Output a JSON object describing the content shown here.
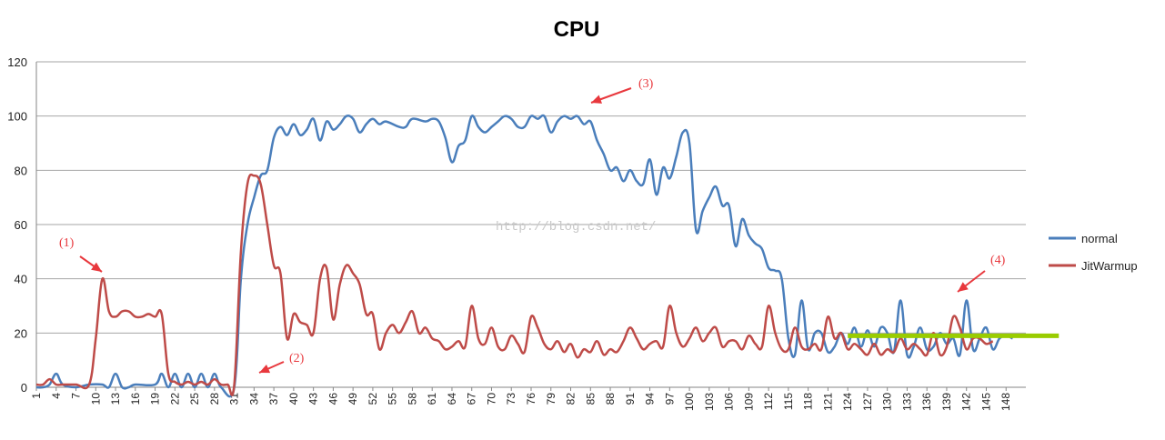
{
  "chart_data": {
    "type": "line",
    "title": "CPU",
    "xlabel": "",
    "ylabel": "",
    "ylim": [
      0,
      120
    ],
    "yticks": [
      0,
      20,
      40,
      60,
      80,
      100,
      120
    ],
    "xlim": [
      1,
      151
    ],
    "xticks": [
      1,
      4,
      7,
      10,
      13,
      16,
      19,
      22,
      25,
      28,
      31,
      34,
      37,
      40,
      43,
      46,
      49,
      52,
      55,
      58,
      61,
      64,
      67,
      70,
      73,
      76,
      79,
      82,
      85,
      88,
      91,
      94,
      97,
      100,
      103,
      106,
      109,
      112,
      115,
      118,
      121,
      124,
      127,
      130,
      133,
      136,
      139,
      142,
      145,
      148
    ],
    "grid": true,
    "legend_position": "right",
    "series": [
      {
        "name": "normal",
        "color": "#4a7ebb",
        "points": [
          [
            1,
            0
          ],
          [
            2,
            0
          ],
          [
            3,
            1
          ],
          [
            4,
            5
          ],
          [
            5,
            1
          ],
          [
            7,
            0
          ],
          [
            9,
            1
          ],
          [
            11,
            1
          ],
          [
            12,
            0
          ],
          [
            13,
            5
          ],
          [
            14,
            0
          ],
          [
            15,
            0
          ],
          [
            16,
            1
          ],
          [
            19,
            1
          ],
          [
            20,
            5
          ],
          [
            21,
            0
          ],
          [
            22,
            5
          ],
          [
            23,
            0
          ],
          [
            24,
            5
          ],
          [
            25,
            0
          ],
          [
            26,
            5
          ],
          [
            27,
            0
          ],
          [
            28,
            5
          ],
          [
            29,
            0
          ],
          [
            31,
            0
          ],
          [
            32,
            40
          ],
          [
            33,
            60
          ],
          [
            34,
            70
          ],
          [
            35,
            78
          ],
          [
            36,
            80
          ],
          [
            37,
            92
          ],
          [
            38,
            96
          ],
          [
            39,
            93
          ],
          [
            40,
            97
          ],
          [
            41,
            93
          ],
          [
            42,
            95
          ],
          [
            43,
            99
          ],
          [
            44,
            91
          ],
          [
            45,
            98
          ],
          [
            46,
            95
          ],
          [
            47,
            97
          ],
          [
            48,
            100
          ],
          [
            49,
            99
          ],
          [
            50,
            94
          ],
          [
            51,
            97
          ],
          [
            52,
            99
          ],
          [
            53,
            97
          ],
          [
            54,
            98
          ],
          [
            56,
            96
          ],
          [
            57,
            96
          ],
          [
            58,
            99
          ],
          [
            60,
            98
          ],
          [
            61,
            99
          ],
          [
            62,
            98
          ],
          [
            63,
            92
          ],
          [
            64,
            83
          ],
          [
            65,
            89
          ],
          [
            66,
            91
          ],
          [
            67,
            100
          ],
          [
            68,
            96
          ],
          [
            69,
            94
          ],
          [
            70,
            96
          ],
          [
            71,
            98
          ],
          [
            72,
            100
          ],
          [
            73,
            99
          ],
          [
            74,
            96
          ],
          [
            75,
            96
          ],
          [
            76,
            100
          ],
          [
            77,
            99
          ],
          [
            78,
            100
          ],
          [
            79,
            94
          ],
          [
            80,
            98
          ],
          [
            81,
            100
          ],
          [
            82,
            99
          ],
          [
            83,
            100
          ],
          [
            84,
            97
          ],
          [
            85,
            98
          ],
          [
            86,
            91
          ],
          [
            87,
            86
          ],
          [
            88,
            80
          ],
          [
            89,
            81
          ],
          [
            90,
            76
          ],
          [
            91,
            80
          ],
          [
            92,
            76
          ],
          [
            93,
            75
          ],
          [
            94,
            84
          ],
          [
            95,
            71
          ],
          [
            96,
            81
          ],
          [
            97,
            77
          ],
          [
            98,
            85
          ],
          [
            99,
            94
          ],
          [
            100,
            90
          ],
          [
            101,
            58
          ],
          [
            102,
            65
          ],
          [
            103,
            70
          ],
          [
            104,
            74
          ],
          [
            105,
            67
          ],
          [
            106,
            67
          ],
          [
            107,
            52
          ],
          [
            108,
            62
          ],
          [
            109,
            56
          ],
          [
            110,
            53
          ],
          [
            111,
            51
          ],
          [
            112,
            44
          ],
          [
            113,
            43
          ],
          [
            114,
            40
          ],
          [
            115,
            18
          ],
          [
            116,
            12
          ],
          [
            117,
            32
          ],
          [
            118,
            14
          ],
          [
            119,
            20
          ],
          [
            120,
            20
          ],
          [
            121,
            13
          ],
          [
            122,
            15
          ],
          [
            123,
            20
          ],
          [
            124,
            16
          ],
          [
            125,
            22
          ],
          [
            126,
            15
          ],
          [
            127,
            21
          ],
          [
            128,
            15
          ],
          [
            129,
            22
          ],
          [
            130,
            20
          ],
          [
            131,
            13
          ],
          [
            132,
            32
          ],
          [
            133,
            12
          ],
          [
            134,
            15
          ],
          [
            135,
            22
          ],
          [
            136,
            14
          ],
          [
            137,
            15
          ],
          [
            138,
            20
          ],
          [
            139,
            16
          ],
          [
            140,
            18
          ],
          [
            141,
            12
          ],
          [
            142,
            32
          ],
          [
            143,
            14
          ],
          [
            144,
            18
          ],
          [
            145,
            22
          ],
          [
            146,
            14
          ],
          [
            147,
            18
          ],
          [
            148,
            19
          ],
          [
            149,
            18
          ]
        ]
      },
      {
        "name": "JitWarmup",
        "color": "#be4b48",
        "points": [
          [
            1,
            1
          ],
          [
            2,
            1
          ],
          [
            3,
            3
          ],
          [
            4,
            1
          ],
          [
            5,
            1
          ],
          [
            7,
            1
          ],
          [
            9,
            1
          ],
          [
            10,
            18
          ],
          [
            11,
            40
          ],
          [
            12,
            28
          ],
          [
            13,
            26
          ],
          [
            14,
            28
          ],
          [
            15,
            28
          ],
          [
            16,
            26
          ],
          [
            17,
            26
          ],
          [
            18,
            27
          ],
          [
            19,
            26
          ],
          [
            20,
            27
          ],
          [
            21,
            5
          ],
          [
            22,
            2
          ],
          [
            23,
            1
          ],
          [
            24,
            2
          ],
          [
            25,
            1
          ],
          [
            26,
            2
          ],
          [
            27,
            1
          ],
          [
            28,
            3
          ],
          [
            29,
            1
          ],
          [
            30,
            1
          ],
          [
            31,
            1
          ],
          [
            32,
            50
          ],
          [
            33,
            75
          ],
          [
            34,
            78
          ],
          [
            35,
            75
          ],
          [
            36,
            60
          ],
          [
            37,
            45
          ],
          [
            38,
            42
          ],
          [
            39,
            18
          ],
          [
            40,
            27
          ],
          [
            41,
            24
          ],
          [
            42,
            23
          ],
          [
            43,
            20
          ],
          [
            44,
            40
          ],
          [
            45,
            44
          ],
          [
            46,
            25
          ],
          [
            47,
            38
          ],
          [
            48,
            45
          ],
          [
            49,
            42
          ],
          [
            50,
            38
          ],
          [
            51,
            27
          ],
          [
            52,
            27
          ],
          [
            53,
            14
          ],
          [
            54,
            20
          ],
          [
            55,
            23
          ],
          [
            56,
            20
          ],
          [
            57,
            24
          ],
          [
            58,
            28
          ],
          [
            59,
            20
          ],
          [
            60,
            22
          ],
          [
            61,
            18
          ],
          [
            62,
            17
          ],
          [
            63,
            14
          ],
          [
            64,
            15
          ],
          [
            65,
            17
          ],
          [
            66,
            15
          ],
          [
            67,
            30
          ],
          [
            68,
            18
          ],
          [
            69,
            16
          ],
          [
            70,
            22
          ],
          [
            71,
            15
          ],
          [
            72,
            14
          ],
          [
            73,
            19
          ],
          [
            74,
            16
          ],
          [
            75,
            13
          ],
          [
            76,
            26
          ],
          [
            77,
            22
          ],
          [
            78,
            16
          ],
          [
            79,
            14
          ],
          [
            80,
            17
          ],
          [
            81,
            13
          ],
          [
            82,
            16
          ],
          [
            83,
            11
          ],
          [
            84,
            14
          ],
          [
            85,
            13
          ],
          [
            86,
            17
          ],
          [
            87,
            12
          ],
          [
            88,
            14
          ],
          [
            89,
            13
          ],
          [
            90,
            17
          ],
          [
            91,
            22
          ],
          [
            92,
            18
          ],
          [
            93,
            14
          ],
          [
            94,
            16
          ],
          [
            95,
            17
          ],
          [
            96,
            15
          ],
          [
            97,
            30
          ],
          [
            98,
            20
          ],
          [
            99,
            15
          ],
          [
            100,
            18
          ],
          [
            101,
            22
          ],
          [
            102,
            17
          ],
          [
            103,
            20
          ],
          [
            104,
            22
          ],
          [
            105,
            15
          ],
          [
            106,
            17
          ],
          [
            107,
            17
          ],
          [
            108,
            14
          ],
          [
            109,
            19
          ],
          [
            110,
            16
          ],
          [
            111,
            15
          ],
          [
            112,
            30
          ],
          [
            113,
            20
          ],
          [
            114,
            14
          ],
          [
            115,
            14
          ],
          [
            116,
            22
          ],
          [
            117,
            15
          ],
          [
            118,
            14
          ],
          [
            119,
            16
          ],
          [
            120,
            14
          ],
          [
            121,
            26
          ],
          [
            122,
            18
          ],
          [
            123,
            20
          ],
          [
            124,
            14
          ],
          [
            125,
            16
          ],
          [
            126,
            14
          ],
          [
            127,
            12
          ],
          [
            128,
            16
          ],
          [
            129,
            12
          ],
          [
            130,
            14
          ],
          [
            131,
            13
          ],
          [
            132,
            18
          ],
          [
            133,
            14
          ],
          [
            134,
            16
          ],
          [
            135,
            14
          ],
          [
            136,
            12
          ],
          [
            137,
            20
          ],
          [
            138,
            12
          ],
          [
            139,
            15
          ],
          [
            140,
            26
          ],
          [
            141,
            22
          ],
          [
            142,
            14
          ],
          [
            143,
            18
          ],
          [
            144,
            18
          ],
          [
            145,
            16
          ],
          [
            146,
            17
          ]
        ]
      }
    ],
    "reference_line": {
      "y": 19,
      "x_range": [
        124,
        156
      ],
      "color": "#99cc00"
    },
    "annotations": [
      {
        "label": "(1)",
        "x": 10,
        "y": 42
      },
      {
        "label": "(2)",
        "x": 34,
        "y": 8
      },
      {
        "label": "(3)",
        "x": 85,
        "y": 105
      },
      {
        "label": "(4)",
        "x": 143,
        "y": 33
      }
    ],
    "watermark": "http://blog.csdn.net/"
  }
}
